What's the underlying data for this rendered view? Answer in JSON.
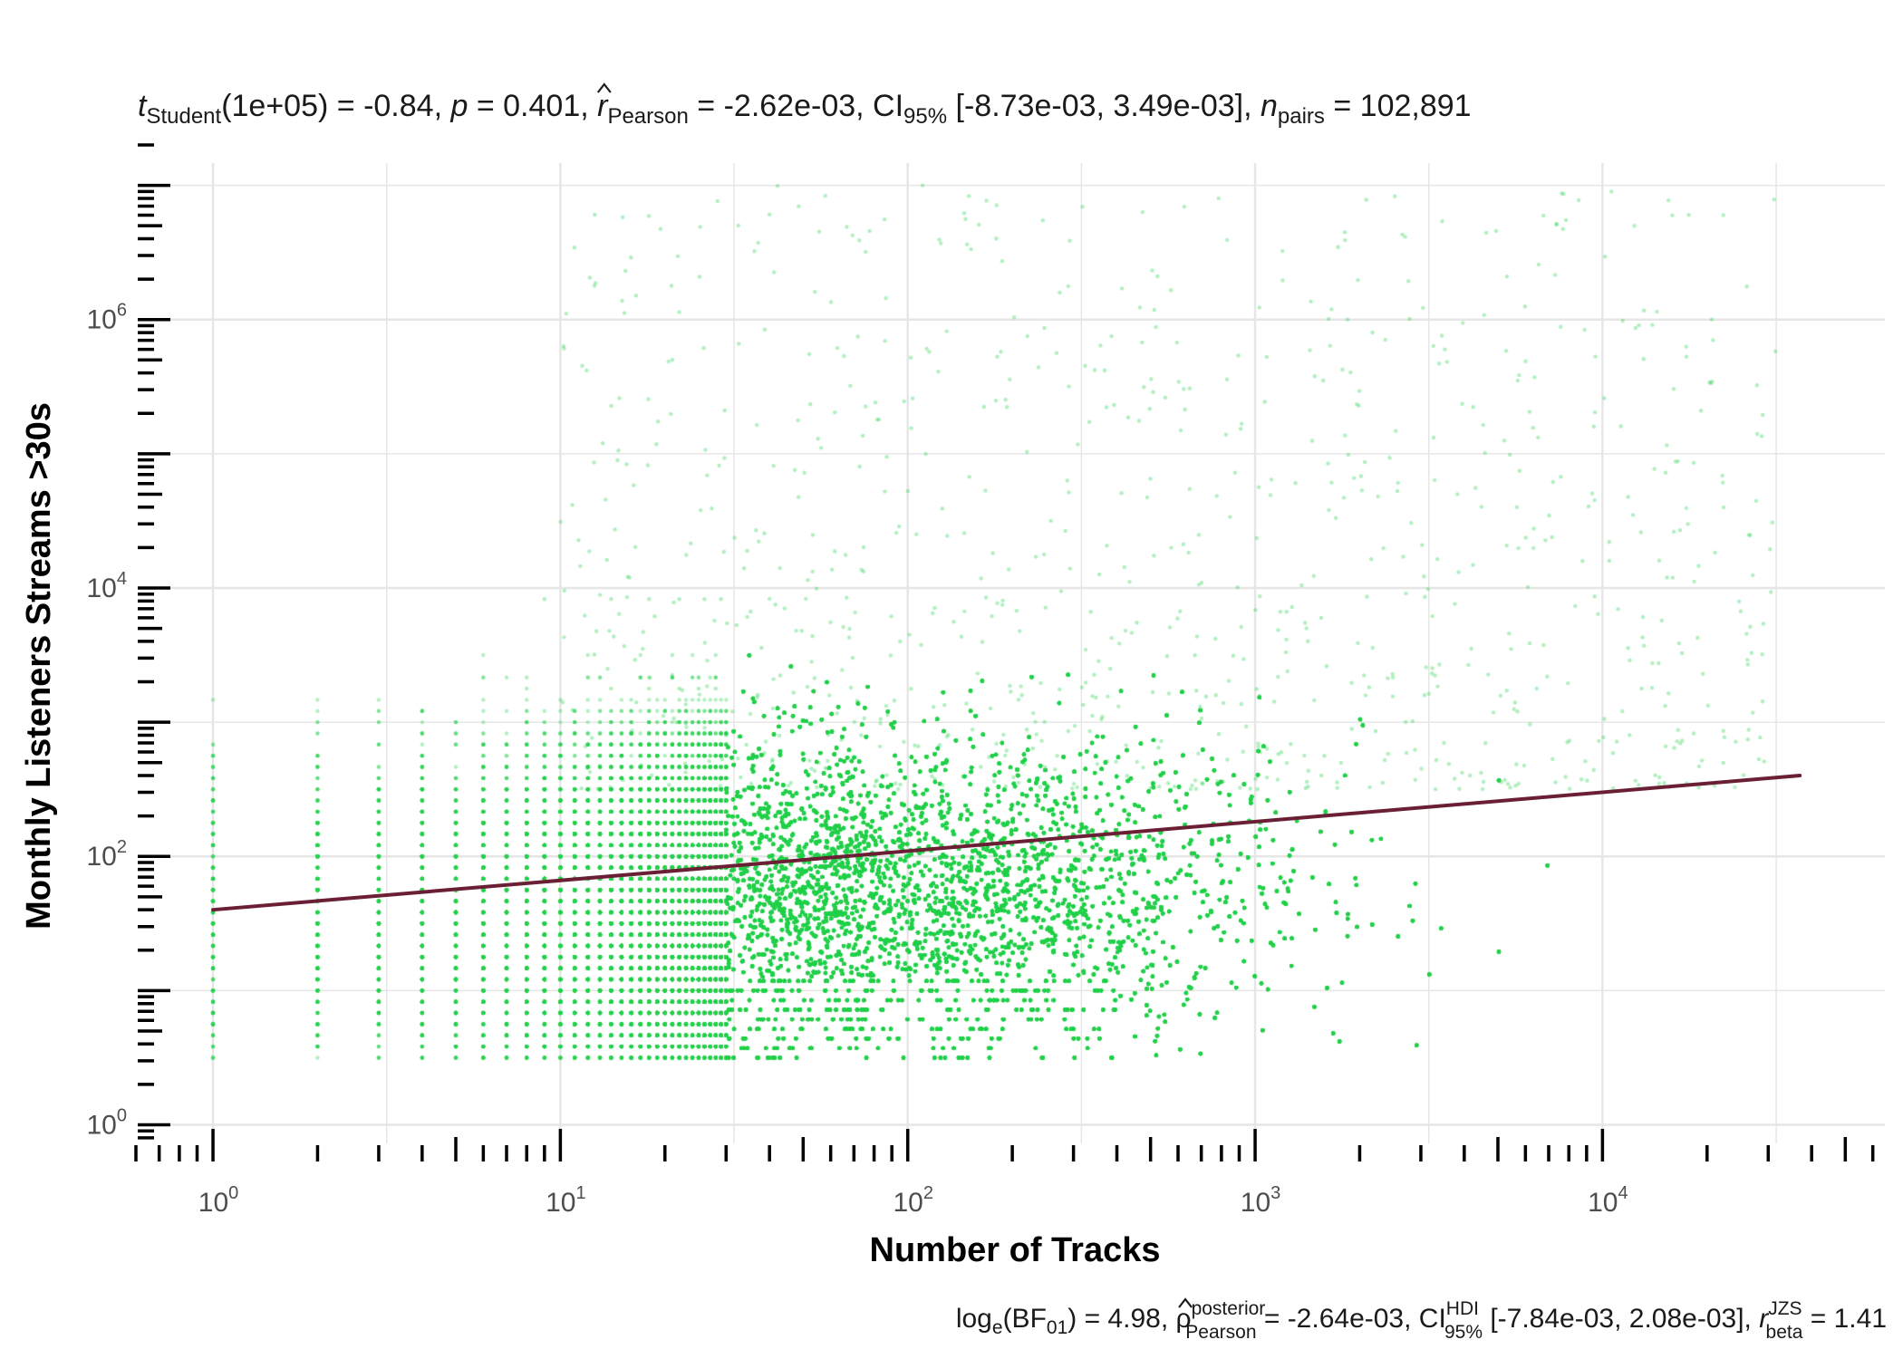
{
  "chart_data": {
    "type": "scatter",
    "title": "t_Student(1e+05) = -0.84, p = 0.401, r̂_Pearson = -2.62e-03, CI_95% [-8.73e-03, 3.49e-03], n_pairs = 102,891",
    "title_parts": {
      "t": "t",
      "t_sub": "Student",
      "t_val": "(1e+05) = -0.84, ",
      "p": "p",
      "p_val": " = 0.401, ",
      "r": "r",
      "r_hat": "^",
      "r_sub": "Pearson",
      "r_val": " = -2.62e-03, CI",
      "ci_sub": "95%",
      "ci_val": " [-8.73e-03, 3.49e-03], ",
      "n": "n",
      "n_sub": "pairs",
      "n_val": " = 102,891"
    },
    "subtitle": "log_e(BF_01) = 4.98, ρ̂^posterior_Pearson = -2.64e-03, CI^HDI_95% [-7.84e-03, 2.08e-03], r^JZS_beta = 1.41",
    "subtitle_parts": {
      "log": "log",
      "log_sub": "e",
      "bf": "(BF",
      "bf_sub": "01",
      "bf_val": ") = 4.98, ",
      "rho": "ρ",
      "rho_hat": "^",
      "rho_sup": "posterior",
      "rho_sub": "Pearson",
      "rho_val": " = -2.64e-03, CI",
      "ci_sup": "HDI",
      "ci_sub": "95%",
      "ci_val": " [-7.84e-03, 2.08e-03], ",
      "r": "r",
      "r_sup": "JZS",
      "r_sub": "beta",
      "r_val": " = 1.41"
    },
    "xlabel": "Number of Tracks",
    "ylabel": "Monthly Listeners Streams >30s",
    "x_scale": "log10",
    "y_scale": "log10",
    "xlim": [
      0.6,
      65000
    ],
    "ylim": [
      0.75,
      20000000
    ],
    "x_major_ticks": [
      1,
      10,
      100,
      1000,
      10000
    ],
    "x_tick_labels": [
      {
        "base": "10",
        "exp": "0"
      },
      {
        "base": "10",
        "exp": "1"
      },
      {
        "base": "10",
        "exp": "2"
      },
      {
        "base": "10",
        "exp": "3"
      },
      {
        "base": "10",
        "exp": "4"
      }
    ],
    "y_major_ticks": [
      1,
      100,
      10000,
      1000000
    ],
    "y_tick_labels": [
      {
        "base": "10",
        "exp": "0"
      },
      {
        "base": "10",
        "exp": "2"
      },
      {
        "base": "10",
        "exp": "4"
      },
      {
        "base": "10",
        "exp": "6"
      }
    ],
    "grid": true,
    "legend": "none",
    "series": [
      {
        "kind": "points",
        "color": "#22d24a",
        "n": 102891,
        "x_range": [
          1,
          45000
        ],
        "y_range": [
          3,
          10000000
        ]
      },
      {
        "kind": "regression_line",
        "color": "#6b1f35",
        "x": [
          1,
          37000
        ],
        "y": [
          40,
          400
        ]
      }
    ]
  }
}
